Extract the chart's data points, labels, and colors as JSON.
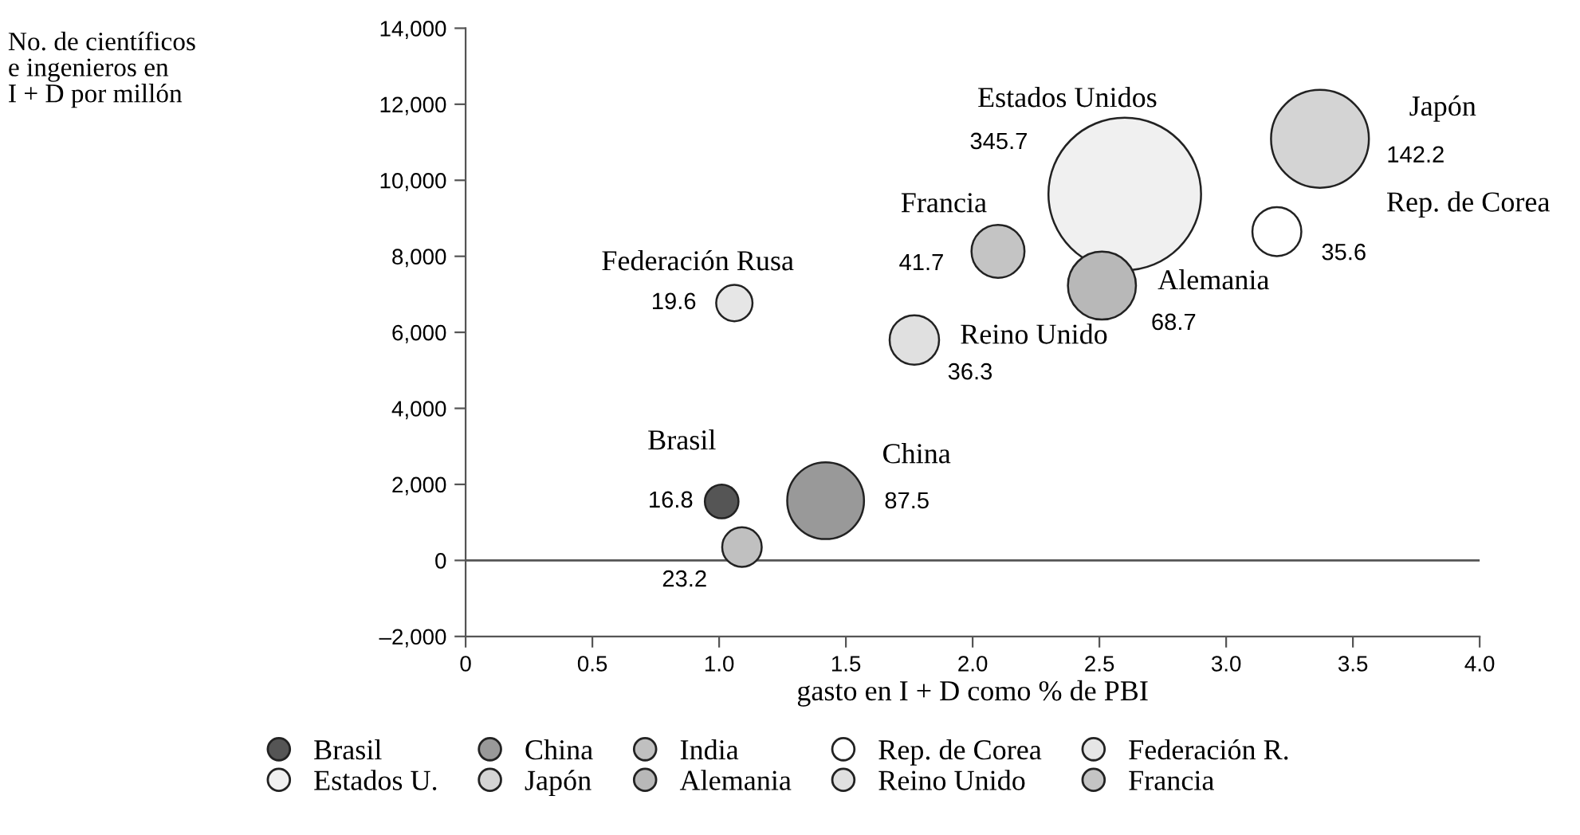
{
  "chart_data": {
    "type": "bubble",
    "xlabel": "gasto en I + D como % de PBI",
    "xlim": [
      0,
      4.0
    ],
    "ylim": [
      -2000,
      14000
    ],
    "xticks": [
      0,
      0.5,
      {
        "value": 1,
        "label": "1.0"
      },
      1.5,
      {
        "value": 2,
        "label": "2.0"
      },
      2.5,
      {
        "value": 3,
        "label": "3.0"
      },
      3.5,
      {
        "value": 4,
        "label": "4.0"
      }
    ],
    "yticks": [
      {
        "value": -2000,
        "label": "–2,000"
      },
      0,
      {
        "value": 2000,
        "label": "2,000"
      },
      {
        "value": 4000,
        "label": "4,000"
      },
      {
        "value": 6000,
        "label": "6,000"
      },
      {
        "value": 8000,
        "label": "8,000"
      },
      {
        "value": 10000,
        "label": "10,000"
      },
      {
        "value": 12000,
        "label": "12,000"
      },
      {
        "value": 14000,
        "label": "14,000"
      }
    ],
    "ref_lines": [
      {
        "axis": "y",
        "value": 0,
        "label": null,
        "color": "#555555"
      }
    ],
    "grid": false,
    "legend": "bottom",
    "marker": "circle",
    "series": [
      {
        "name": "Brasil",
        "color": "#555555",
        "x": [
          1.01
        ],
        "values": [
          1550
        ],
        "sizes": [
          16.8
        ],
        "value_labels": [
          "16.8"
        ]
      },
      {
        "name": "China",
        "color": "#999999",
        "x": [
          1.42
        ],
        "values": [
          1570
        ],
        "sizes": [
          87.5
        ],
        "value_labels": [
          "87.5"
        ]
      },
      {
        "name": "India",
        "color": "#c0c0c0",
        "x": [
          1.09
        ],
        "values": [
          350
        ],
        "sizes": [
          23.2
        ],
        "value_labels": [
          "23.2"
        ]
      },
      {
        "name": "Rep. de Corea",
        "color": "#ffffff",
        "x": [
          3.2
        ],
        "values": [
          8650
        ],
        "sizes": [
          35.6
        ],
        "value_labels": [
          "35.6"
        ]
      },
      {
        "name": "Federación R.",
        "color": "#e6e6e6",
        "x": [
          1.06
        ],
        "values": [
          6770
        ],
        "sizes": [
          19.6
        ],
        "value_labels": [
          "19.6"
        ]
      },
      {
        "name": "Estados U.",
        "color": "#f0f0f0",
        "x": [
          2.6
        ],
        "values": [
          9640
        ],
        "sizes": [
          345.7
        ],
        "value_labels": [
          "345.7"
        ]
      },
      {
        "name": "Japón",
        "color": "#d4d4d4",
        "x": [
          3.37
        ],
        "values": [
          11090
        ],
        "sizes": [
          142.2
        ],
        "value_labels": [
          "142.2"
        ]
      },
      {
        "name": "Alemania",
        "color": "#b8b8b8",
        "x": [
          2.51
        ],
        "values": [
          7230
        ],
        "sizes": [
          68.7
        ],
        "value_labels": [
          "68.7"
        ]
      },
      {
        "name": "Reino Unido",
        "color": "#e0e0e0",
        "x": [
          1.77
        ],
        "values": [
          5800
        ],
        "sizes": [
          36.3
        ],
        "value_labels": [
          "36.3"
        ]
      },
      {
        "name": "Francia",
        "color": "#c4c4c4",
        "x": [
          2.1
        ],
        "values": [
          8130
        ],
        "sizes": [
          41.7
        ],
        "value_labels": [
          "41.7"
        ]
      }
    ],
    "annotations": [
      "No. de científicos\ne ingenieros en\nI + D por millón",
      "Estados Unidos",
      "Japón",
      "Rep. de Corea",
      "Alemania",
      "Reino Unido",
      "Francia",
      "Federación Rusa",
      "Brasil",
      "China"
    ]
  }
}
